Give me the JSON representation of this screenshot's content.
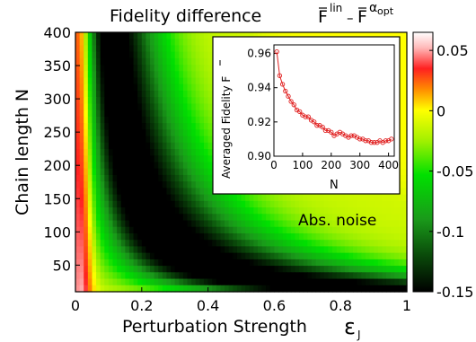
{
  "chart_data": [
    {
      "type": "heatmap",
      "title_main": "Fidelity difference",
      "title_formula": {
        "base": "F",
        "sup1": "lin",
        "minus": "–",
        "base2": "F",
        "sup2_greek": "α",
        "sup2_sub": "opt"
      },
      "xlabel": "Perturbation Strength",
      "xlabel_symbol": "ε",
      "xlabel_sub": "J",
      "ylabel": "Chain length N",
      "xlim": [
        0,
        1
      ],
      "ylim": [
        10,
        400
      ],
      "x_ticks": [
        "0",
        "0.2",
        "0.4",
        "0.6",
        "0.8",
        "1"
      ],
      "y_ticks": [
        "50",
        "100",
        "150",
        "200",
        "250",
        "300",
        "350",
        "400"
      ],
      "colorbar": {
        "range": [
          -0.15,
          0.065
        ],
        "ticks": [
          "0.05",
          "0",
          "-0.05",
          "-0.1",
          "-0.15"
        ],
        "colors": {
          "min": "#000000",
          "mid_dark": "#1a9a1a",
          "green": "#00e000",
          "zero": "#ffff00",
          "orange": "#ff8c00",
          "red": "#ff2020",
          "max": "#ffffff"
        }
      },
      "annotation": "Abs. noise",
      "model": {
        "description_points": [
          {
            "N": 400,
            "eps_min": 0.09
          },
          {
            "N": 250,
            "eps_min": 0.13
          },
          {
            "N": 150,
            "eps_min": 0.19
          },
          {
            "N": 100,
            "eps_min": 0.26
          },
          {
            "N": 50,
            "eps_min": 0.35
          }
        ],
        "extent": [
          {
            "N": 400,
            "eps": 0.2
          },
          {
            "N": 200,
            "eps": 0.4
          },
          {
            "N": 100,
            "eps": 0.6
          },
          {
            "N": 50,
            "eps": 0.85
          },
          {
            "N": 30,
            "eps": 1.0
          }
        ]
      }
    },
    {
      "type": "line",
      "ylabel": "Averaged Fidelity F",
      "xlabel": "N",
      "xlim": [
        0,
        420
      ],
      "ylim": [
        0.9,
        0.965
      ],
      "x_ticks": [
        "0",
        "100",
        "200",
        "300",
        "400"
      ],
      "y_ticks": [
        "0.90",
        "0.92",
        "0.94",
        "0.96"
      ],
      "series": [
        {
          "color": "#e02020",
          "x": [
            10,
            20,
            30,
            40,
            50,
            60,
            70,
            80,
            90,
            100,
            110,
            120,
            130,
            140,
            150,
            160,
            170,
            180,
            190,
            200,
            210,
            220,
            230,
            240,
            250,
            260,
            270,
            280,
            290,
            300,
            310,
            320,
            330,
            340,
            350,
            360,
            370,
            380,
            390,
            400,
            410
          ],
          "y": [
            0.961,
            0.947,
            0.942,
            0.938,
            0.935,
            0.932,
            0.93,
            0.927,
            0.926,
            0.924,
            0.923,
            0.923,
            0.921,
            0.92,
            0.918,
            0.918,
            0.917,
            0.915,
            0.915,
            0.914,
            0.912,
            0.913,
            0.914,
            0.913,
            0.912,
            0.911,
            0.912,
            0.912,
            0.911,
            0.91,
            0.91,
            0.909,
            0.909,
            0.908,
            0.908,
            0.908,
            0.909,
            0.908,
            0.909,
            0.909,
            0.91
          ]
        }
      ]
    }
  ]
}
